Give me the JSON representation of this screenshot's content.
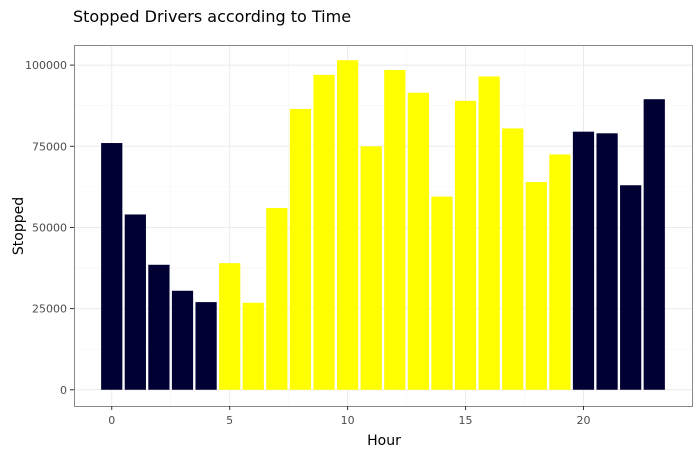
{
  "chart_data": {
    "type": "bar",
    "title": "Stopped Drivers according to Time",
    "xlabel": "Hour",
    "ylabel": "Stopped",
    "x": [
      0,
      1,
      2,
      3,
      4,
      5,
      6,
      7,
      8,
      9,
      10,
      11,
      12,
      13,
      14,
      15,
      16,
      17,
      18,
      19,
      20,
      21,
      22,
      23
    ],
    "values": [
      76000,
      54000,
      38500,
      30500,
      27000,
      39000,
      26800,
      56000,
      86500,
      97000,
      101500,
      75000,
      98500,
      91500,
      59500,
      89000,
      96500,
      80500,
      64000,
      72500,
      79500,
      79000,
      63000,
      89500
    ],
    "bar_colors": [
      "#000033",
      "#000033",
      "#000033",
      "#000033",
      "#000033",
      "#ffff00",
      "#ffff00",
      "#ffff00",
      "#ffff00",
      "#ffff00",
      "#ffff00",
      "#ffff00",
      "#ffff00",
      "#ffff00",
      "#ffff00",
      "#ffff00",
      "#ffff00",
      "#ffff00",
      "#ffff00",
      "#ffff00",
      "#000033",
      "#000033",
      "#000033",
      "#000033"
    ],
    "xlim": [
      -1.6,
      24.6
    ],
    "ylim": [
      -5000,
      106200
    ],
    "xticks": [
      0,
      5,
      10,
      15,
      20
    ],
    "xtick_labels": [
      "0",
      "5",
      "10",
      "15",
      "20"
    ],
    "yticks": [
      0,
      25000,
      50000,
      75000,
      100000
    ],
    "ytick_labels": [
      "0",
      "25000",
      "50000",
      "75000",
      "100000"
    ],
    "grid": true,
    "legend": "none"
  }
}
